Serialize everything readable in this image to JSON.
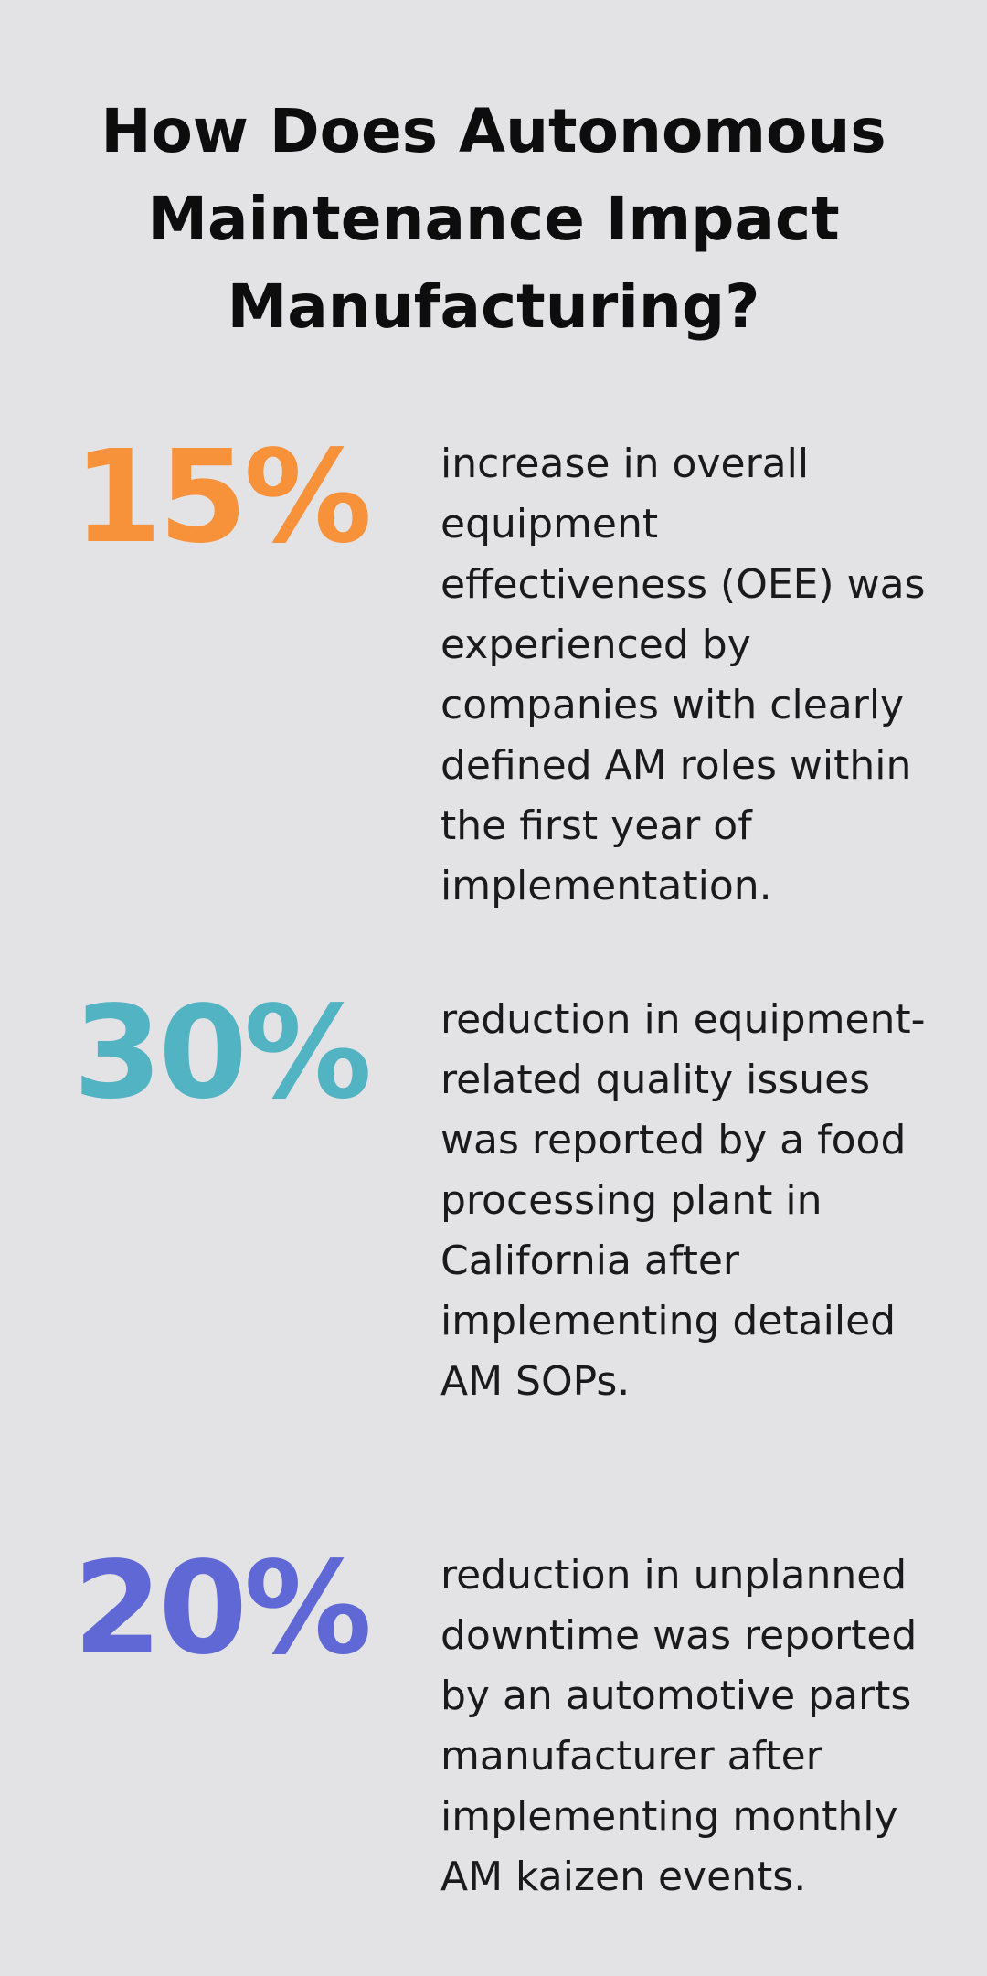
{
  "title": "How Does Autonomous Maintenance Impact Manufacturing?",
  "stats": [
    {
      "value": "15%",
      "color": "#f7913a",
      "description": "increase in overall equipment effectiveness (OEE) was experienced by companies with clearly defined AM roles within the first year of implementation."
    },
    {
      "value": "30%",
      "color": "#52b3c2",
      "description": "reduction in equipment-related quality issues was reported by a food processing plant in California after implementing detailed AM SOPs."
    },
    {
      "value": "20%",
      "color": "#5f68d4",
      "description": "reduction in unplanned downtime was reported by an automotive parts manufacturer after implementing monthly AM kaizen events."
    }
  ]
}
